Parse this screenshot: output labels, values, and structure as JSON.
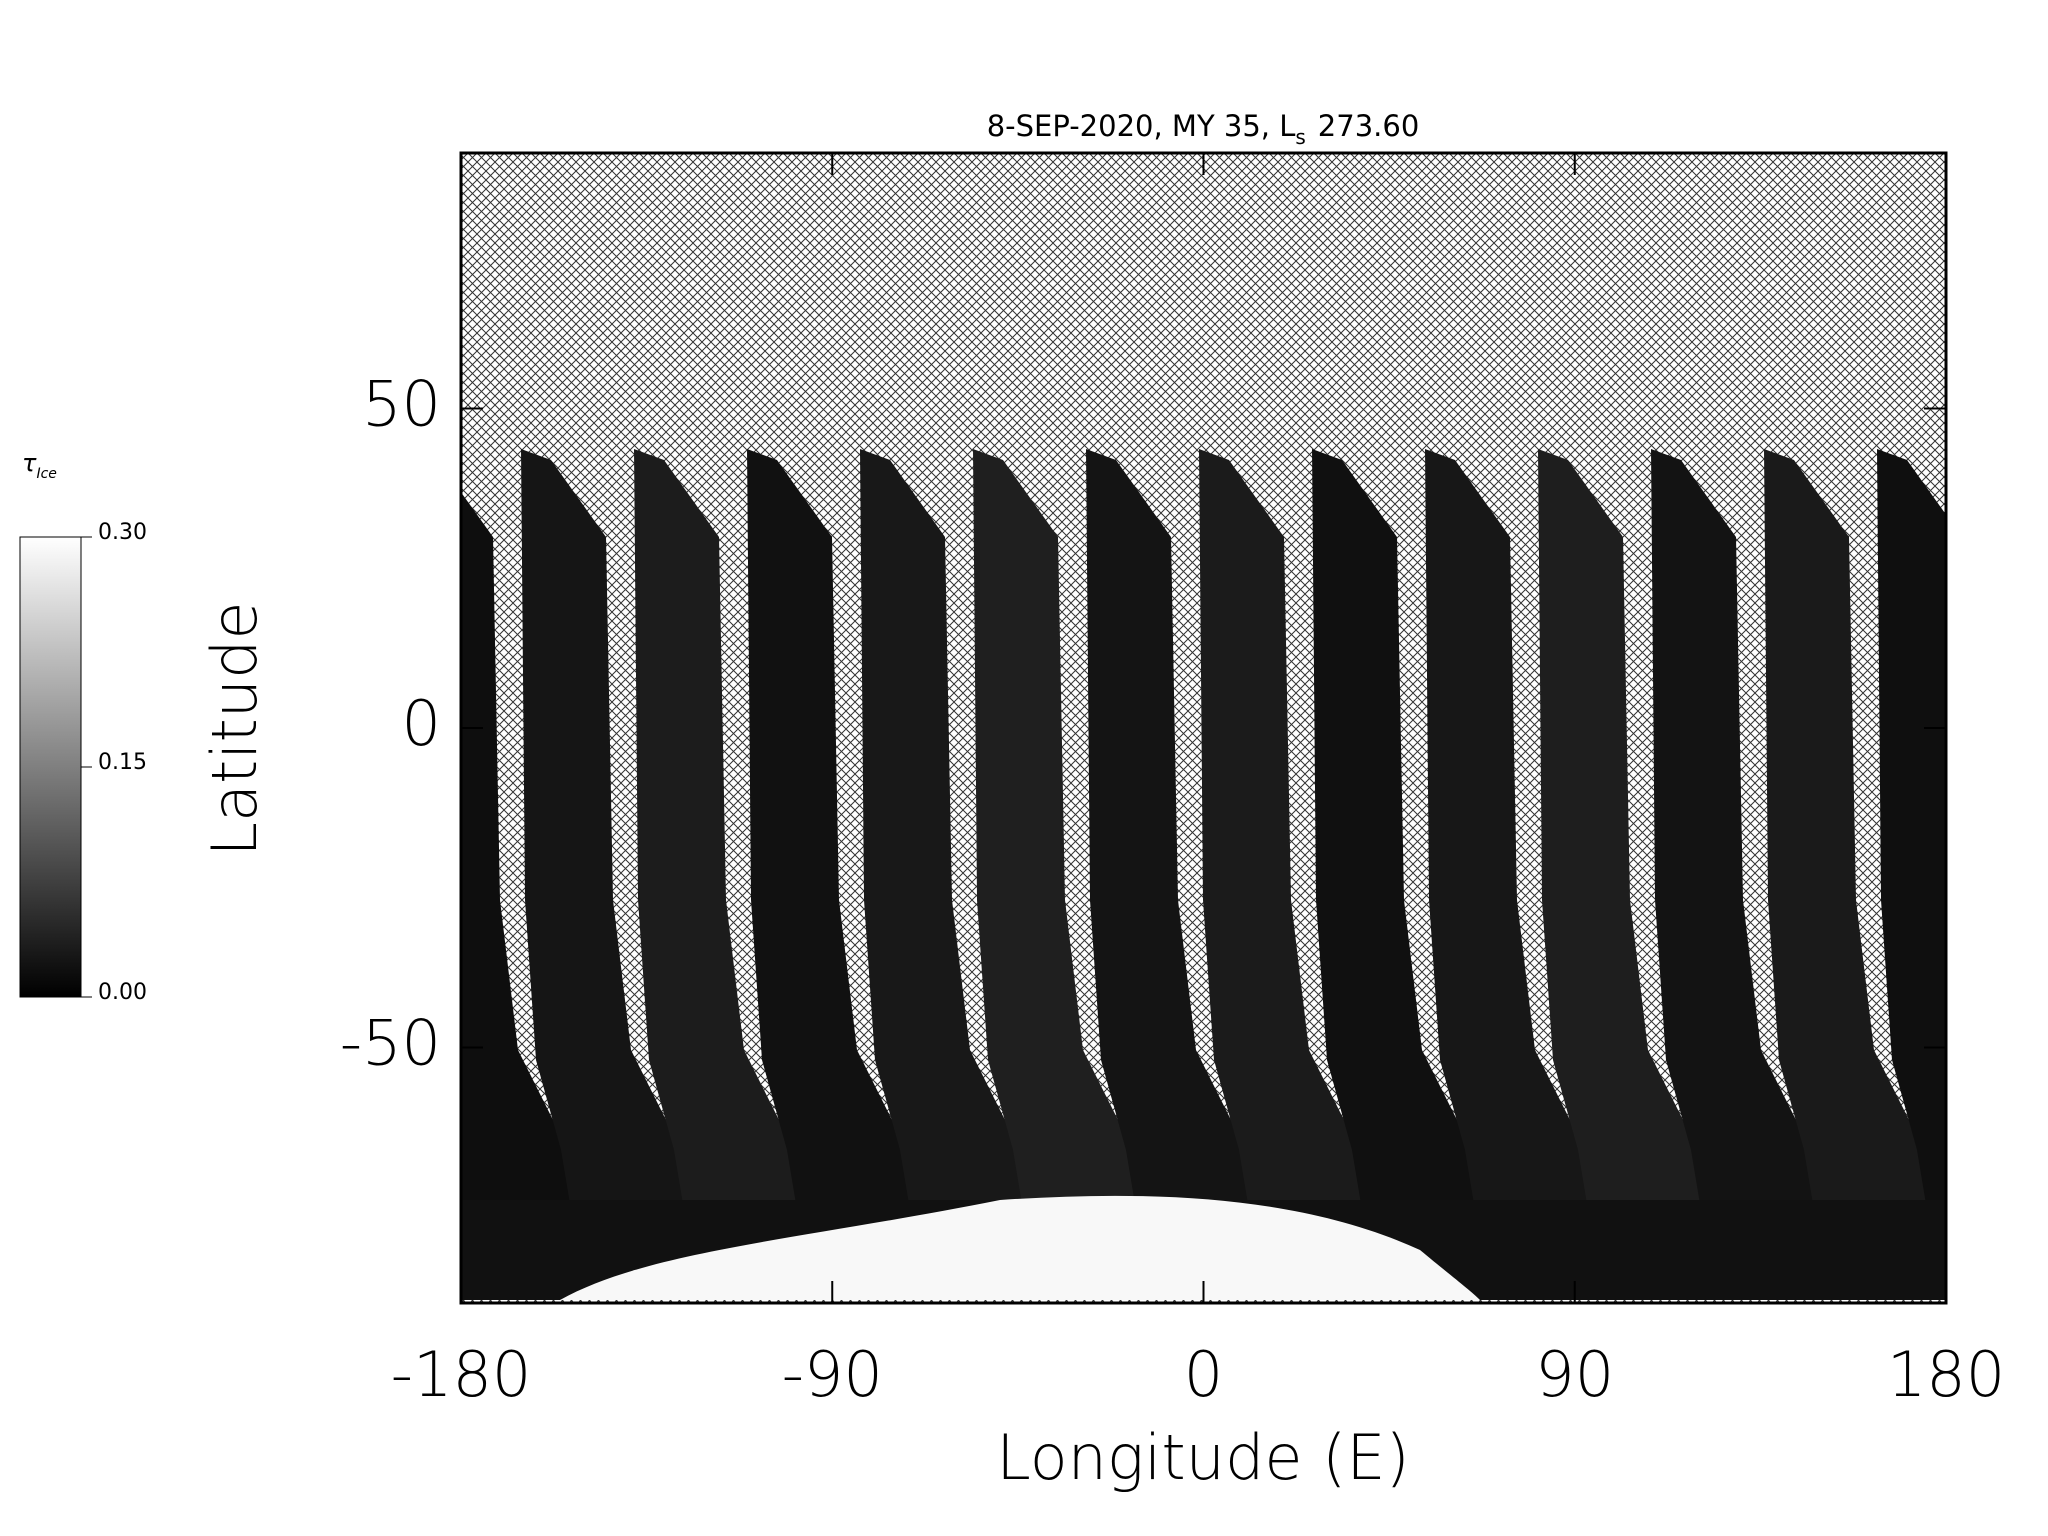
{
  "chart_data": {
    "type": "map",
    "title": {
      "text": "8-SEP-2020, MY 35,  L",
      "sub": "s",
      "tail": "273.60"
    },
    "xlabel": "Longitude (E)",
    "ylabel": "Latitude",
    "xlim": [
      -180,
      180
    ],
    "ylim": [
      -90,
      90
    ],
    "xticks": [
      -180,
      -90,
      0,
      90,
      180
    ],
    "yticks": [
      -50,
      0,
      50
    ],
    "colorbar": {
      "label": "τ",
      "label_sub": "Ice",
      "lim": [
        0,
        0.3
      ],
      "ticks": [
        {
          "value": 0,
          "label": "0.00"
        },
        {
          "value": 0.15,
          "label": "0.15"
        },
        {
          "value": 0.3,
          "label": "0.30"
        }
      ]
    }
  }
}
